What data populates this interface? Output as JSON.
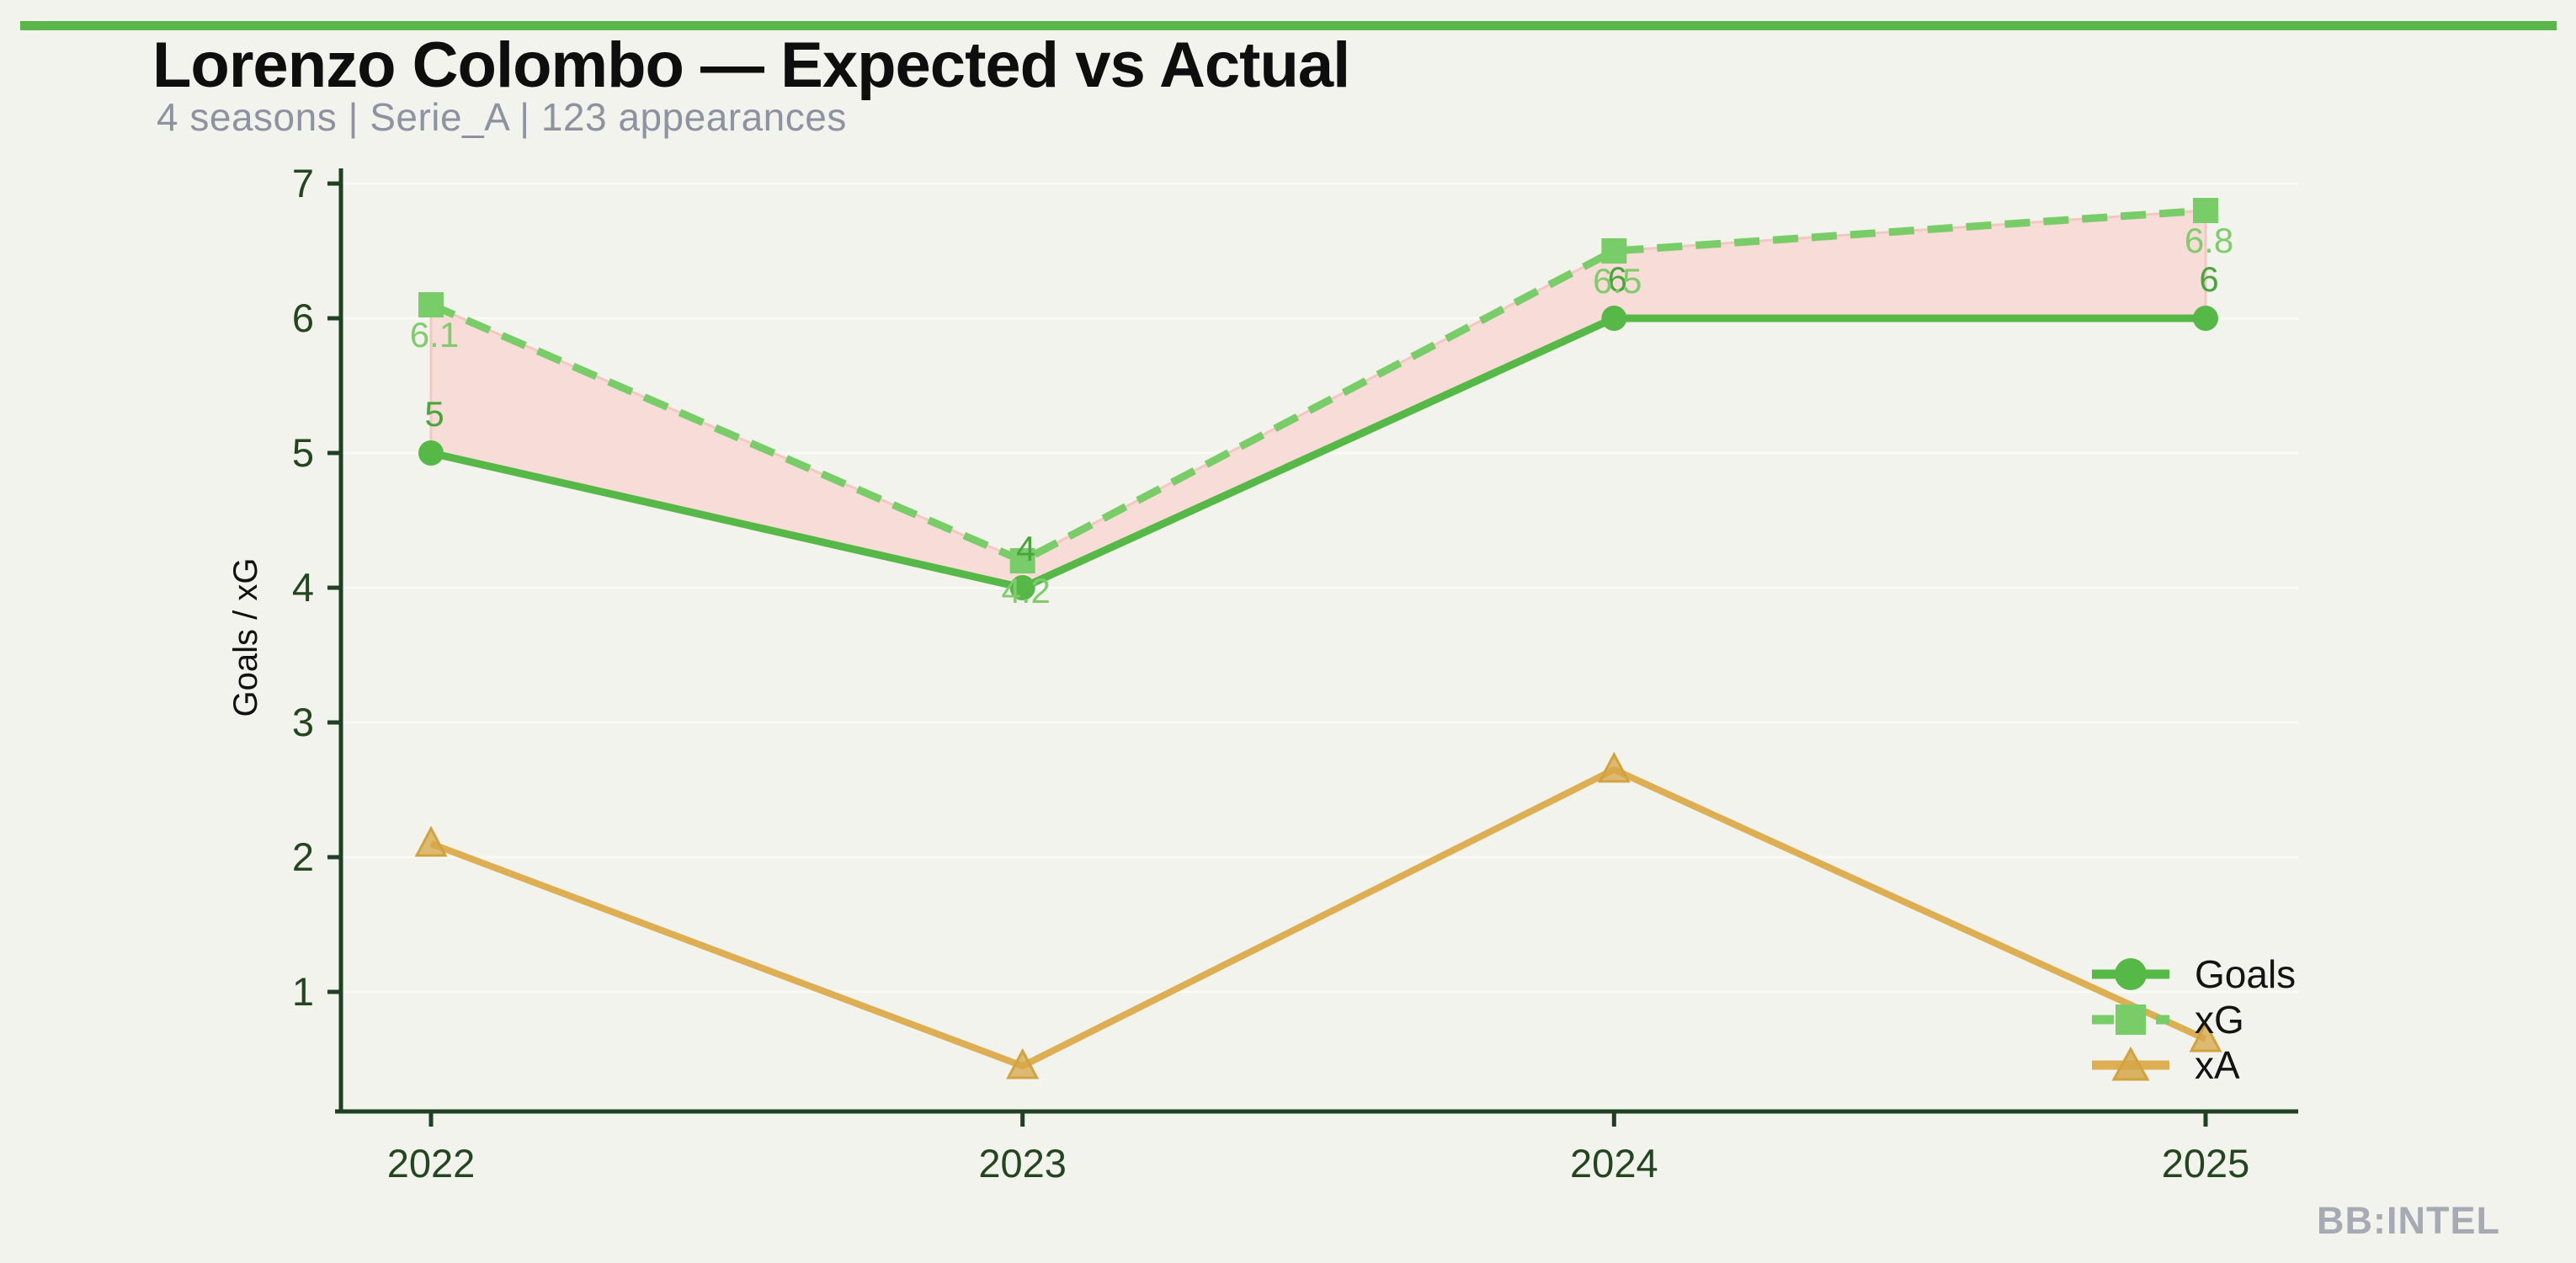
{
  "page": {
    "background_color": "#f2f3ec",
    "accent_bar_color": "#5ab54b",
    "watermark": "BB:INTEL"
  },
  "header": {
    "title": "Lorenzo Colombo — Expected vs Actual",
    "subtitle": "4 seasons | Serie_A | 123 appearances"
  },
  "chart_data": {
    "type": "line",
    "title": "Lorenzo Colombo — Expected vs Actual",
    "subtitle": "4 seasons | Serie_A | 123 appearances",
    "x": [
      2022,
      2023,
      2024,
      2025
    ],
    "x_tick_labels": [
      "2022",
      "2023",
      "2024",
      "2025"
    ],
    "xlabel": "",
    "ylabel": "Goals / xG",
    "yticks": [
      1,
      2,
      3,
      4,
      5,
      6,
      7
    ],
    "ylim": [
      0.1,
      7.1
    ],
    "grid": "horizontal-faint",
    "grid_color": "#fafbf4",
    "axis_color": "#1f4023",
    "tick_label_color": "#24461f",
    "series": [
      {
        "name": "Goals",
        "values": [
          5,
          4,
          6,
          6
        ],
        "point_labels": [
          "5",
          "4",
          "6",
          "6"
        ],
        "label_side": "above",
        "label_color": "#4aa53e",
        "color": "#56b847",
        "line_style": "solid",
        "marker": "circle"
      },
      {
        "name": "xG",
        "values": [
          6.1,
          4.2,
          6.5,
          6.8
        ],
        "point_labels": [
          "6.1",
          "4.2",
          "6.5",
          "6.8"
        ],
        "label_side": "below",
        "label_color": "#7fcc6d",
        "color": "#79cd68",
        "line_style": "dashed",
        "marker": "square"
      },
      {
        "name": "xA",
        "values": [
          2.1,
          0.45,
          2.65,
          0.65
        ],
        "point_labels": null,
        "label_side": null,
        "label_color": null,
        "color": "#ddae52",
        "line_style": "solid",
        "marker": "triangle"
      }
    ],
    "fill_between": {
      "upper": "xG",
      "lower": "Goals",
      "fill_color": "#f8dcd7",
      "edge_color": "#f3c7c2"
    },
    "legend": {
      "position": "lower-right",
      "frame": false,
      "entries": [
        "Goals",
        "xG",
        "xA"
      ]
    }
  }
}
